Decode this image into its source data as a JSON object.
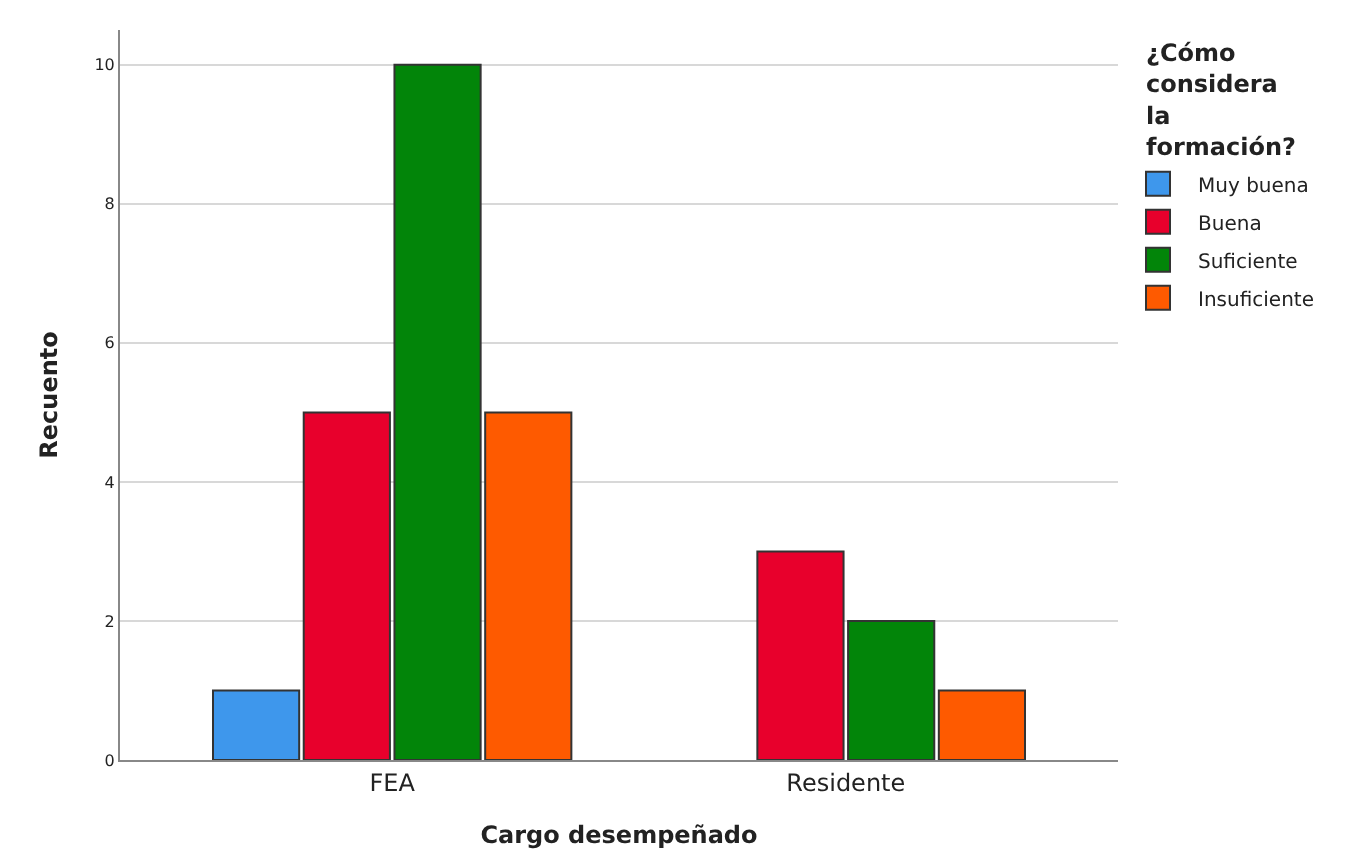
{
  "chart_data": {
    "type": "bar",
    "xlabel": "Cargo desempeñado",
    "ylabel": "Recuento",
    "legend_title": "¿Cómo considera la formación?",
    "categories": [
      "FEA",
      "Residente"
    ],
    "series": [
      {
        "name": "Muy buena",
        "color": "#3e97ec",
        "values": [
          1,
          null
        ]
      },
      {
        "name": "Buena",
        "color": "#e8002c",
        "values": [
          5,
          3
        ]
      },
      {
        "name": "Suficiente",
        "color": "#028509",
        "values": [
          10,
          2
        ]
      },
      {
        "name": "Insuficiente",
        "color": "#fe5a00",
        "values": [
          5,
          1
        ]
      }
    ],
    "ylim": [
      0,
      10.5
    ],
    "yticks": [
      0,
      2,
      4,
      6,
      8,
      10
    ],
    "grid": "y",
    "legend": "top right"
  }
}
